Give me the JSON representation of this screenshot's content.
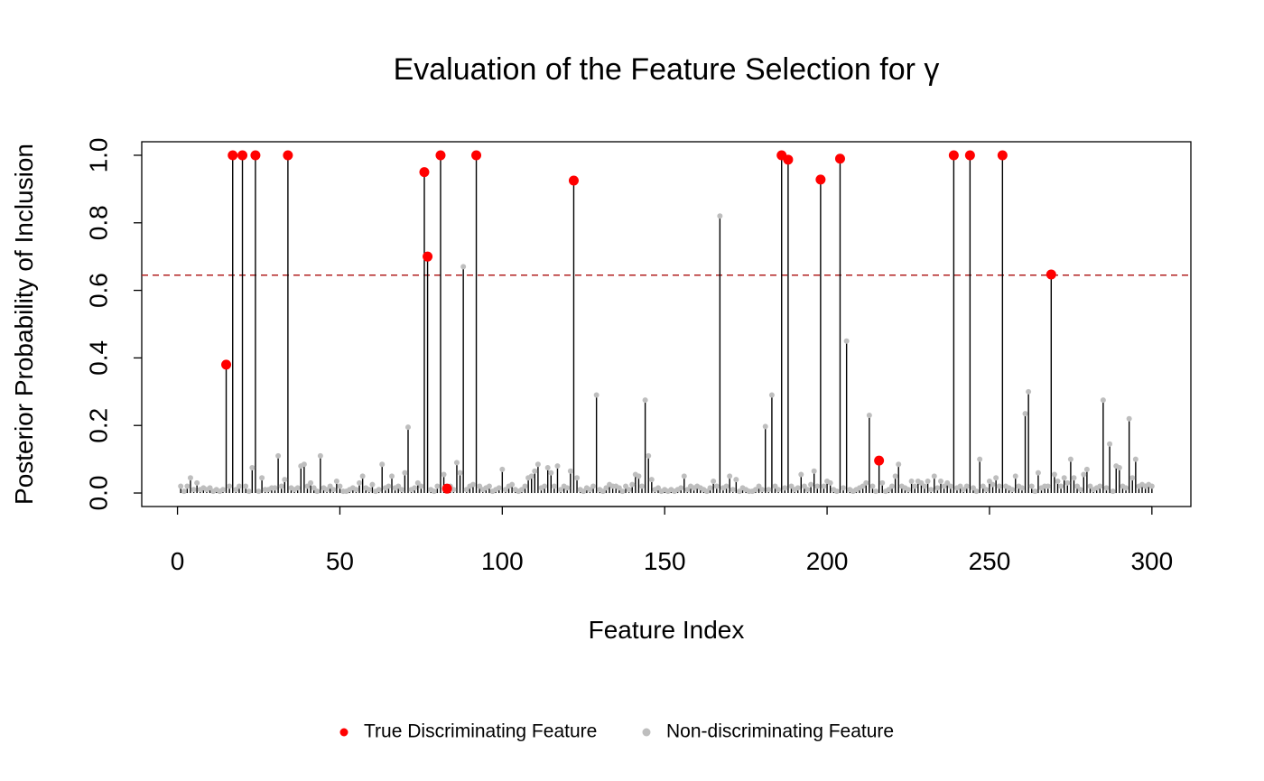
{
  "chart_data": {
    "type": "stem",
    "title": "Evaluation of the Feature Selection for γ",
    "x_label": "Feature Index",
    "y_label": "Posterior Probability of Inclusion",
    "xlim": [
      -11,
      312
    ],
    "ylim": [
      -0.04,
      1.04
    ],
    "xticks": [
      0,
      50,
      100,
      150,
      200,
      250,
      300
    ],
    "yticks": [
      {
        "value": 0,
        "label": "0.0"
      },
      0.2,
      0.4,
      0.6,
      0.8,
      {
        "value": 1,
        "label": "1.0"
      }
    ],
    "stem_color": "#000000",
    "threshold_line": {
      "value": 0.645,
      "color": "#b22222",
      "dashed": true
    },
    "legend_position": "bottom",
    "series": [
      {
        "name": "True Discriminating Feature",
        "color": "#ff0000",
        "x": [
          15,
          17,
          20,
          24,
          34,
          76,
          77,
          81,
          83,
          92,
          122,
          186,
          188,
          198,
          204,
          216,
          239,
          244,
          254,
          269
        ],
        "values": [
          0.38,
          1,
          1,
          1,
          1,
          0.95,
          0.7,
          1,
          0.013,
          1,
          0.925,
          1,
          0.987,
          0.928,
          0.99,
          0.096,
          1,
          1,
          1,
          0.647
        ]
      },
      {
        "name": "Non-discriminating Feature",
        "color": "#bebebe",
        "x": [
          1,
          2,
          3,
          4,
          5,
          6,
          7,
          8,
          9,
          10,
          11,
          12,
          13,
          14,
          16,
          18,
          19,
          21,
          22,
          23,
          25,
          26,
          27,
          28,
          29,
          30,
          31,
          32,
          33,
          35,
          36,
          37,
          38,
          39,
          40,
          41,
          42,
          43,
          44,
          45,
          46,
          47,
          48,
          49,
          50,
          51,
          52,
          53,
          54,
          55,
          56,
          57,
          58,
          59,
          60,
          61,
          62,
          63,
          64,
          65,
          66,
          67,
          68,
          69,
          70,
          71,
          72,
          73,
          74,
          75,
          78,
          79,
          80,
          82,
          84,
          85,
          86,
          87,
          88,
          89,
          90,
          91,
          93,
          94,
          95,
          96,
          97,
          98,
          99,
          100,
          101,
          102,
          103,
          104,
          105,
          106,
          107,
          108,
          109,
          110,
          111,
          112,
          113,
          114,
          115,
          116,
          117,
          118,
          119,
          120,
          121,
          123,
          124,
          125,
          126,
          127,
          128,
          129,
          130,
          131,
          132,
          133,
          134,
          135,
          136,
          137,
          138,
          139,
          140,
          141,
          142,
          143,
          144,
          145,
          146,
          147,
          148,
          149,
          150,
          151,
          152,
          153,
          154,
          155,
          156,
          157,
          158,
          159,
          160,
          161,
          162,
          163,
          164,
          165,
          166,
          167,
          168,
          169,
          170,
          171,
          172,
          173,
          174,
          175,
          176,
          177,
          178,
          179,
          180,
          181,
          182,
          183,
          184,
          185,
          187,
          189,
          190,
          191,
          192,
          193,
          194,
          195,
          196,
          197,
          199,
          200,
          201,
          202,
          203,
          205,
          206,
          207,
          208,
          209,
          210,
          211,
          212,
          213,
          214,
          215,
          217,
          218,
          219,
          220,
          221,
          222,
          223,
          224,
          225,
          226,
          227,
          228,
          229,
          230,
          231,
          232,
          233,
          234,
          235,
          236,
          237,
          238,
          240,
          241,
          242,
          243,
          245,
          246,
          247,
          248,
          249,
          250,
          251,
          252,
          253,
          255,
          256,
          257,
          258,
          259,
          260,
          261,
          262,
          263,
          264,
          265,
          266,
          267,
          268,
          270,
          271,
          272,
          273,
          274,
          275,
          276,
          277,
          278,
          279,
          280,
          281,
          282,
          283,
          284,
          285,
          286,
          287,
          288,
          289,
          290,
          291,
          292,
          293,
          294,
          295,
          296,
          297,
          298,
          299,
          300
        ],
        "values": [
          0.02,
          0.005,
          0.02,
          0.045,
          0.01,
          0.03,
          0.01,
          0.015,
          0.01,
          0.015,
          0.005,
          0.01,
          0.005,
          0.01,
          0.02,
          0.01,
          0.02,
          0.02,
          0.005,
          0.075,
          0.005,
          0.045,
          0.01,
          0.01,
          0.015,
          0.015,
          0.11,
          0.02,
          0.04,
          0.015,
          0.01,
          0.015,
          0.08,
          0.085,
          0.02,
          0.03,
          0.015,
          0.005,
          0.11,
          0.015,
          0.01,
          0.02,
          0.01,
          0.035,
          0.02,
          0.005,
          0.005,
          0.01,
          0.015,
          0.01,
          0.03,
          0.05,
          0.015,
          0.01,
          0.025,
          0.005,
          0.01,
          0.085,
          0.015,
          0.02,
          0.05,
          0.015,
          0.02,
          0.01,
          0.06,
          0.195,
          0.01,
          0.015,
          0.03,
          0.02,
          0.01,
          0.005,
          0.02,
          0.055,
          0.02,
          0.01,
          0.09,
          0.06,
          0.67,
          0.01,
          0.02,
          0.025,
          0.02,
          0.01,
          0.015,
          0.02,
          0.005,
          0.01,
          0.015,
          0.07,
          0.01,
          0.02,
          0.025,
          0.01,
          0.005,
          0.01,
          0.02,
          0.045,
          0.05,
          0.065,
          0.085,
          0.015,
          0.02,
          0.075,
          0.06,
          0.02,
          0.08,
          0.01,
          0.02,
          0.015,
          0.065,
          0.045,
          0.01,
          0.005,
          0.015,
          0.01,
          0.02,
          0.29,
          0.01,
          0.005,
          0.015,
          0.025,
          0.02,
          0.02,
          0.015,
          0.005,
          0.02,
          0.01,
          0.025,
          0.055,
          0.05,
          0.02,
          0.275,
          0.11,
          0.04,
          0.01,
          0.015,
          0.005,
          0.01,
          0.005,
          0.01,
          0.005,
          0.01,
          0.015,
          0.05,
          0.01,
          0.02,
          0.015,
          0.02,
          0.015,
          0.01,
          0.005,
          0.015,
          0.035,
          0.02,
          0.82,
          0.015,
          0.02,
          0.05,
          0.01,
          0.04,
          0.005,
          0.015,
          0.01,
          0.005,
          0.005,
          0.01,
          0.02,
          0.01,
          0.197,
          0.01,
          0.29,
          0.02,
          0.01,
          0.015,
          0.02,
          0.01,
          0.015,
          0.055,
          0.02,
          0.01,
          0.025,
          0.065,
          0.02,
          0.02,
          0.035,
          0.03,
          0.01,
          0.005,
          0.015,
          0.45,
          0.01,
          0.005,
          0.01,
          0.015,
          0.02,
          0.03,
          0.23,
          0.02,
          0.005,
          0.03,
          0.005,
          0.01,
          0.02,
          0.05,
          0.085,
          0.02,
          0.015,
          0.01,
          0.035,
          0.02,
          0.035,
          0.03,
          0.02,
          0.035,
          0.01,
          0.05,
          0.015,
          0.035,
          0.02,
          0.03,
          0.02,
          0.015,
          0.02,
          0.01,
          0.02,
          0.015,
          0.005,
          0.1,
          0.02,
          0.01,
          0.035,
          0.025,
          0.045,
          0.02,
          0.02,
          0.015,
          0.01,
          0.05,
          0.02,
          0.015,
          0.235,
          0.3,
          0.02,
          0.005,
          0.06,
          0.015,
          0.02,
          0.02,
          0.055,
          0.035,
          0.02,
          0.045,
          0.03,
          0.1,
          0.045,
          0.02,
          0.01,
          0.055,
          0.07,
          0.02,
          0.01,
          0.015,
          0.02,
          0.275,
          0.015,
          0.145,
          0.005,
          0.08,
          0.075,
          0.02,
          0.015,
          0.22,
          0.045,
          0.1,
          0.02,
          0.025,
          0.02,
          0.025,
          0.02
        ]
      }
    ]
  }
}
